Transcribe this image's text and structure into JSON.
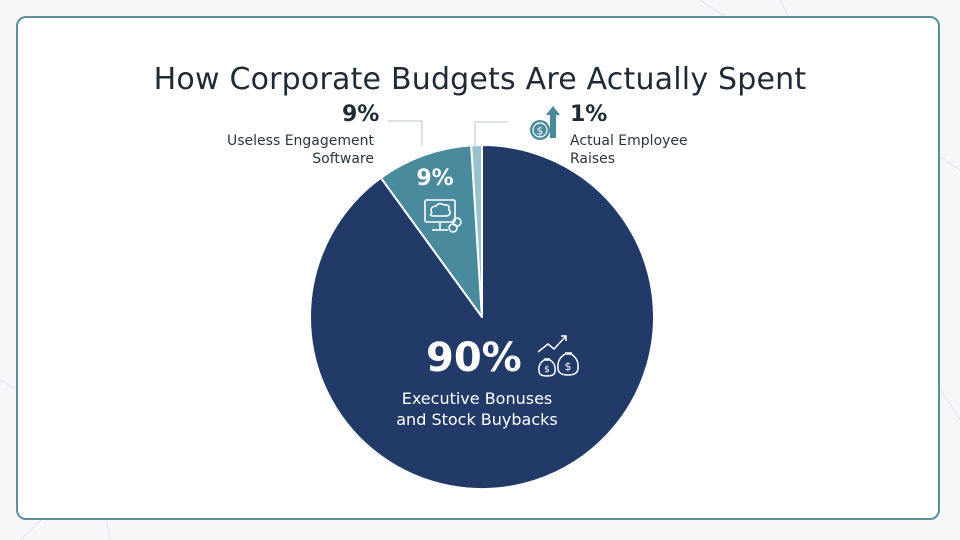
{
  "title": "How Corporate Budgets Are Actually Spent",
  "chart_data": {
    "type": "pie",
    "title": "How Corporate Budgets Are Actually Spent",
    "categories": [
      "Executive Bonuses and Stock Buybacks",
      "Useless Engagement Software",
      "Actual Employee Raises"
    ],
    "values": [
      90,
      9,
      1
    ],
    "colors": [
      "#223a68",
      "#4a8a9d",
      "#98c3cc"
    ]
  },
  "slices": {
    "executive": {
      "pct": "90%",
      "label": "Executive Bonuses and Stock Buybacks",
      "line1": "Executive Bonuses",
      "line2": "and Stock Buybacks",
      "icon": "money-bags-growth-icon"
    },
    "software": {
      "pct": "9%",
      "label_line1": "Useless Engagement",
      "label_line2": "Software",
      "inner_pct": "9%",
      "icon": "monitor-chat-icon"
    },
    "raises": {
      "pct": "1%",
      "label_line1": "Actual Employee",
      "label_line2": "Raises",
      "icon": "coin-arrow-up-icon"
    }
  },
  "colors": {
    "frame": "#5e8f98",
    "text": "#1e2a36",
    "leader": "#b8c4c8"
  }
}
